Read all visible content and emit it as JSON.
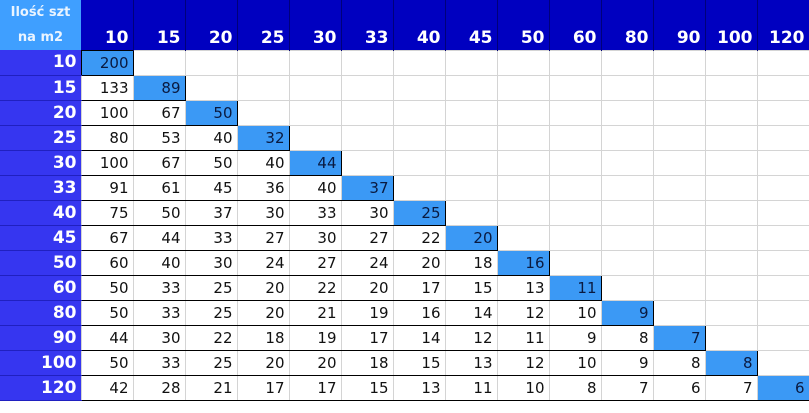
{
  "corner_label": [
    "Ilość szt",
    "na m2"
  ],
  "column_headers": [
    "10",
    "15",
    "20",
    "25",
    "30",
    "33",
    "40",
    "45",
    "50",
    "60",
    "80",
    "90",
    "100",
    "120"
  ],
  "rows": [
    {
      "label": "10",
      "values": [
        "200"
      ]
    },
    {
      "label": "15",
      "values": [
        "133",
        "89"
      ]
    },
    {
      "label": "20",
      "values": [
        "100",
        "67",
        "50"
      ]
    },
    {
      "label": "25",
      "values": [
        "80",
        "53",
        "40",
        "32"
      ]
    },
    {
      "label": "30",
      "values": [
        "100",
        "67",
        "50",
        "40",
        "44"
      ]
    },
    {
      "label": "33",
      "values": [
        "91",
        "61",
        "45",
        "36",
        "40",
        "37"
      ]
    },
    {
      "label": "40",
      "values": [
        "75",
        "50",
        "37",
        "30",
        "33",
        "30",
        "25"
      ]
    },
    {
      "label": "45",
      "values": [
        "67",
        "44",
        "33",
        "27",
        "30",
        "27",
        "22",
        "20"
      ]
    },
    {
      "label": "50",
      "values": [
        "60",
        "40",
        "30",
        "24",
        "27",
        "24",
        "20",
        "18",
        "16"
      ]
    },
    {
      "label": "60",
      "values": [
        "50",
        "33",
        "25",
        "20",
        "22",
        "20",
        "17",
        "15",
        "13",
        "11"
      ]
    },
    {
      "label": "80",
      "values": [
        "50",
        "33",
        "25",
        "20",
        "21",
        "19",
        "16",
        "14",
        "12",
        "10",
        "9"
      ]
    },
    {
      "label": "90",
      "values": [
        "44",
        "30",
        "22",
        "18",
        "19",
        "17",
        "14",
        "12",
        "11",
        "9",
        "8",
        "7"
      ]
    },
    {
      "label": "100",
      "values": [
        "50",
        "33",
        "25",
        "20",
        "20",
        "18",
        "15",
        "13",
        "12",
        "10",
        "9",
        "8",
        "8"
      ]
    },
    {
      "label": "120",
      "values": [
        "42",
        "28",
        "21",
        "17",
        "17",
        "15",
        "13",
        "11",
        "10",
        "8",
        "7",
        "6",
        "7",
        "6"
      ]
    }
  ],
  "colors": {
    "header": "#0000c0",
    "row_header": "#3636f0",
    "corner": "#3f9fff",
    "diagonal": "#3b99f5"
  }
}
